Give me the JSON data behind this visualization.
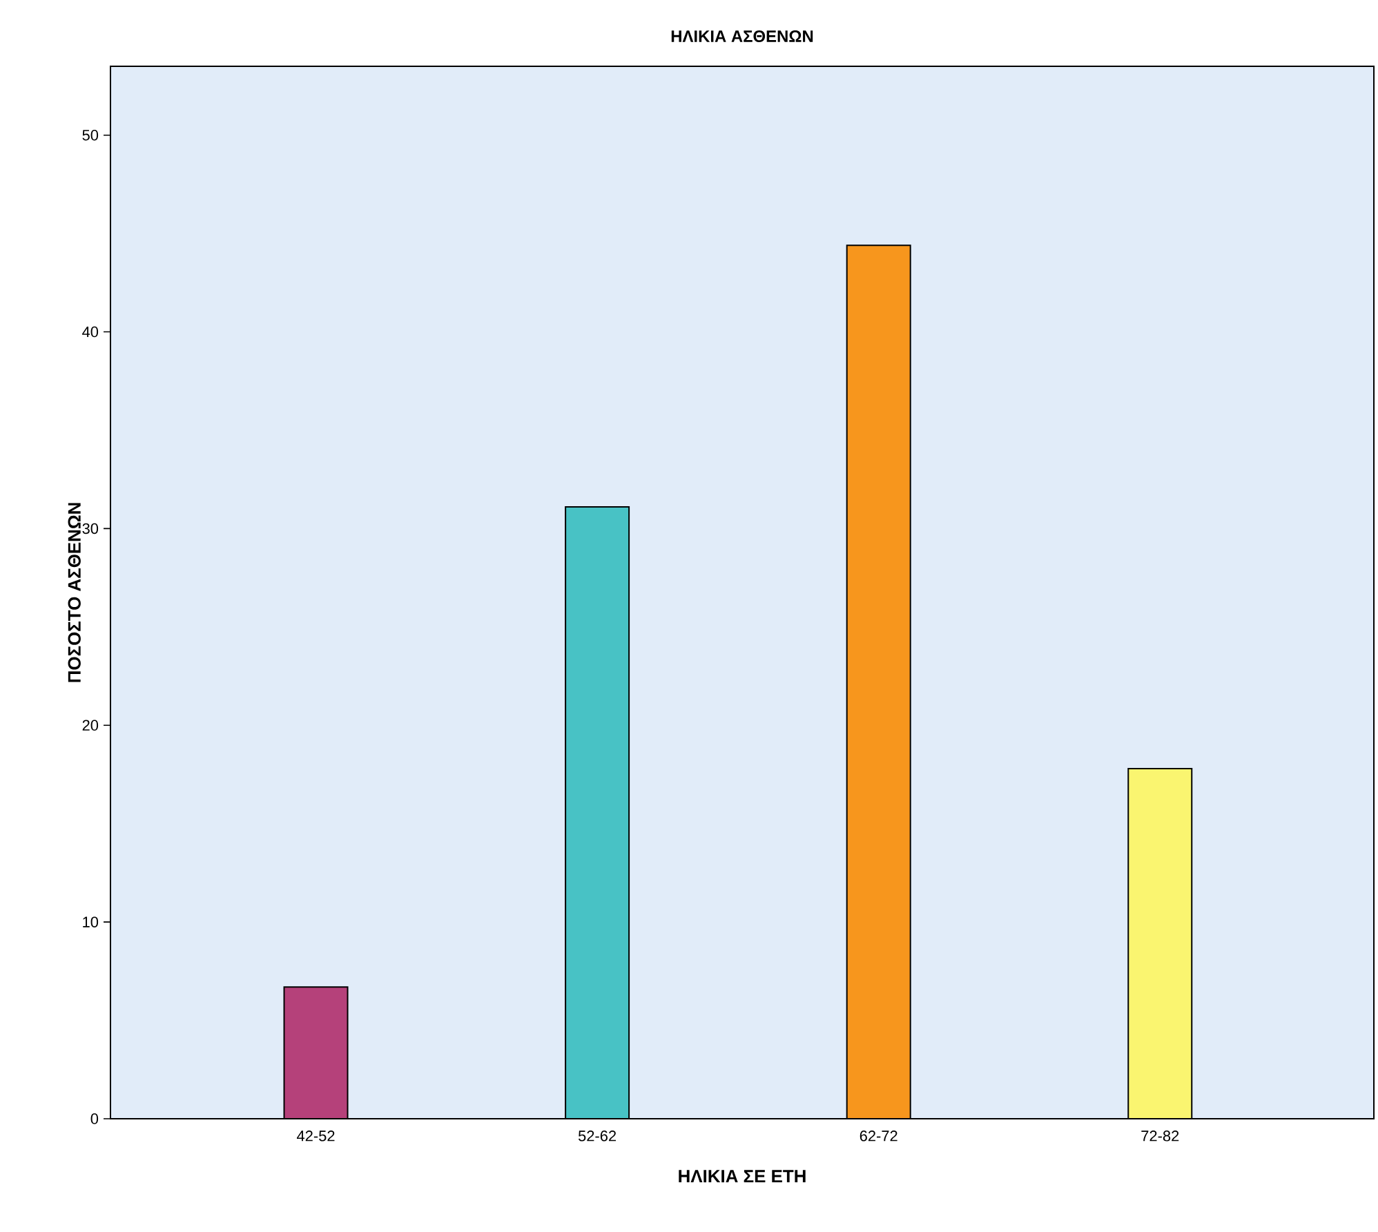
{
  "chart_data": {
    "type": "bar",
    "title": "ΗΛΙΚΙΑ ΑΣΘΕΝΩΝ",
    "xlabel": "ΗΛΙΚΙΑ ΣΕ ΕΤΗ",
    "ylabel": "ΠΟΣΟΣΤΟ ΑΣΘΕΝΩΝ",
    "categories": [
      "42-52",
      "52-62",
      "62-72",
      "72-82"
    ],
    "values": [
      6.7,
      31.1,
      44.4,
      17.8
    ],
    "colors": [
      "#b5417a",
      "#48c2c5",
      "#f7961d",
      "#faf570"
    ],
    "ylim": [
      0,
      53.5
    ],
    "yticks": [
      0,
      10,
      20,
      30,
      40,
      50
    ],
    "grid": false
  }
}
